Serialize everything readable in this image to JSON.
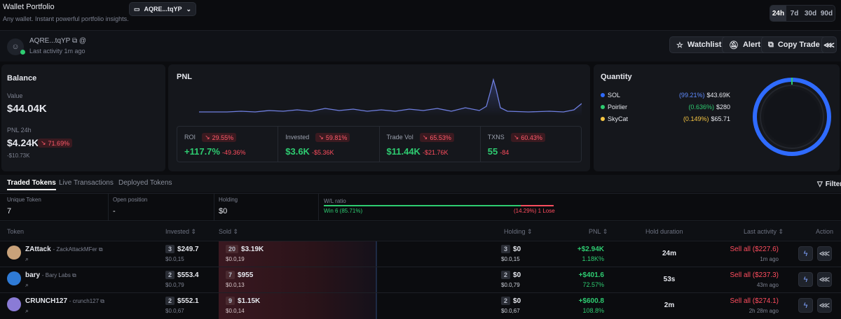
{
  "header": {
    "title": "Wallet Portfolio",
    "subtitle": "Any wallet. Instant powerful portfolio insights.",
    "wallet_selector": "AQRE...tqYP",
    "timeframes": [
      "24h",
      "7d",
      "30d",
      "90d"
    ]
  },
  "profile": {
    "address": "AQRE...tqYP",
    "last_activity": "Last activity 1m ago",
    "buttons": {
      "watchlist": "Watchlist",
      "alert": "Alert",
      "copy_trade": "Copy Trade"
    }
  },
  "balance": {
    "title": "Balance",
    "value_label": "Value",
    "value": "$44.04K",
    "pnl_label": "PNL 24h",
    "pnl_value": "$4.24K",
    "pnl_change": "71.69%",
    "pnl_sub": "-$10.73K"
  },
  "pnl": {
    "title": "PNL",
    "metrics": [
      {
        "label": "ROI",
        "badge": "29.55%",
        "value": "+117.7%",
        "sub": "-49.36%"
      },
      {
        "label": "Invested",
        "badge": "59.81%",
        "value": "$3.6K",
        "sub": "-$5.36K"
      },
      {
        "label": "Trade Vol",
        "badge": "65.53%",
        "value": "$11.44K",
        "sub": "-$21.76K"
      },
      {
        "label": "TXNS",
        "badge": "60.43%",
        "value": "55",
        "sub": "-84"
      }
    ]
  },
  "quantity": {
    "title": "Quantity",
    "items": [
      {
        "name": "SOL",
        "pct": "(99.21%)",
        "value": "$43.69K",
        "color": "#2f6bff",
        "fraction": 0.9921
      },
      {
        "name": "Poirlier",
        "pct": "(0.636%)",
        "value": "$280",
        "color": "#2ecc71",
        "fraction": 0.00636
      },
      {
        "name": "SkyCat",
        "pct": "(0.149%)",
        "value": "$65.71",
        "color": "#f5c542",
        "fraction": 0.00149
      }
    ]
  },
  "tabs": {
    "items": [
      "Traded Tokens",
      "Live Transactions",
      "Deployed Tokens"
    ],
    "filter": "Filter"
  },
  "summary": {
    "unique_label": "Unique Token",
    "unique_value": "7",
    "open_label": "Open position",
    "open_value": "-",
    "holding_label": "Holding",
    "holding_value": "$0",
    "wl_label": "W/L ratio",
    "win": "Win 6 (85.71%)",
    "lose": "(14.29%) 1 Lose",
    "win_fraction": 0.8571
  },
  "table": {
    "headers": {
      "token": "Token",
      "invested": "Invested",
      "sold": "Sold",
      "holding": "Holding",
      "pnl": "PNL",
      "hold": "Hold duration",
      "last": "Last activity",
      "action": "Action"
    },
    "rows": [
      {
        "name": "ZAttack",
        "sub": "ZackAttackMFer",
        "inv_count": "3",
        "inv": "$249.7",
        "inv_sub": "$0.0,15",
        "sold_count": "20",
        "sold": "$3.19K",
        "sold_sub": "$0.0,19",
        "hold_count": "3",
        "hold": "$0",
        "hold_sub": "$0.0,15",
        "pnl": "+$2.94K",
        "pnl_pct": "1.18K%",
        "duration": "24m",
        "last": "Sell all ($227.6)",
        "last_time": "1m ago",
        "avatar": "#c9a27a"
      },
      {
        "name": "bary",
        "sub": "Bary Labs",
        "inv_count": "2",
        "inv": "$553.4",
        "inv_sub": "$0.0,79",
        "sold_count": "7",
        "sold": "$955",
        "sold_sub": "$0.0,13",
        "hold_count": "2",
        "hold": "$0",
        "hold_sub": "$0.0,79",
        "pnl": "+$401.6",
        "pnl_pct": "72.57%",
        "duration": "53s",
        "last": "Sell all ($237.3)",
        "last_time": "43m ago",
        "avatar": "#2f7bd6"
      },
      {
        "name": "CRUNCH127",
        "sub": "crunch127",
        "inv_count": "2",
        "inv": "$552.1",
        "inv_sub": "$0.0,67",
        "sold_count": "9",
        "sold": "$1.15K",
        "sold_sub": "$0.0,14",
        "hold_count": "2",
        "hold": "$0",
        "hold_sub": "$0.0,67",
        "pnl": "+$600.8",
        "pnl_pct": "108.8%",
        "duration": "2m",
        "last": "Sell all ($274.1)",
        "last_time": "2h 28m ago",
        "avatar": "#8a7bd6"
      }
    ]
  }
}
